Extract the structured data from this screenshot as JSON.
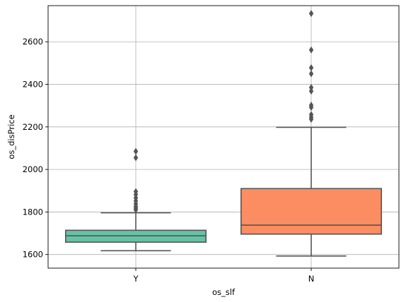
{
  "chart_data": {
    "type": "box",
    "title": "",
    "xlabel": "os_slf",
    "ylabel": "os_disPrice",
    "categories": [
      "Y",
      "N"
    ],
    "ylim": [
      1536,
      2770
    ],
    "yticks": [
      1600,
      1800,
      2000,
      2200,
      2400,
      2600
    ],
    "ytick_labels": [
      "1600",
      "1800",
      "2000",
      "2200",
      "2400",
      "2600"
    ],
    "grid": true,
    "colors": {
      "Y": "#66c2a5",
      "N": "#fc8d62",
      "line": "#555555",
      "grid": "#b0b0b0",
      "axis": "#000000"
    },
    "boxes": [
      {
        "category": "Y",
        "whisker_low": 1618,
        "q1": 1658,
        "median": 1688,
        "q3": 1714,
        "whisker_high": 1796,
        "outliers": [
          1810,
          1818,
          1826,
          1838,
          1852,
          1866,
          1882,
          1896,
          2055,
          2085
        ]
      },
      {
        "category": "N",
        "whisker_low": 1593,
        "q1": 1696,
        "median": 1738,
        "q3": 1910,
        "whisker_high": 2198,
        "outliers": [
          2236,
          2246,
          2258,
          2292,
          2302,
          2368,
          2385,
          2450,
          2478,
          2562,
          2733
        ]
      }
    ]
  }
}
